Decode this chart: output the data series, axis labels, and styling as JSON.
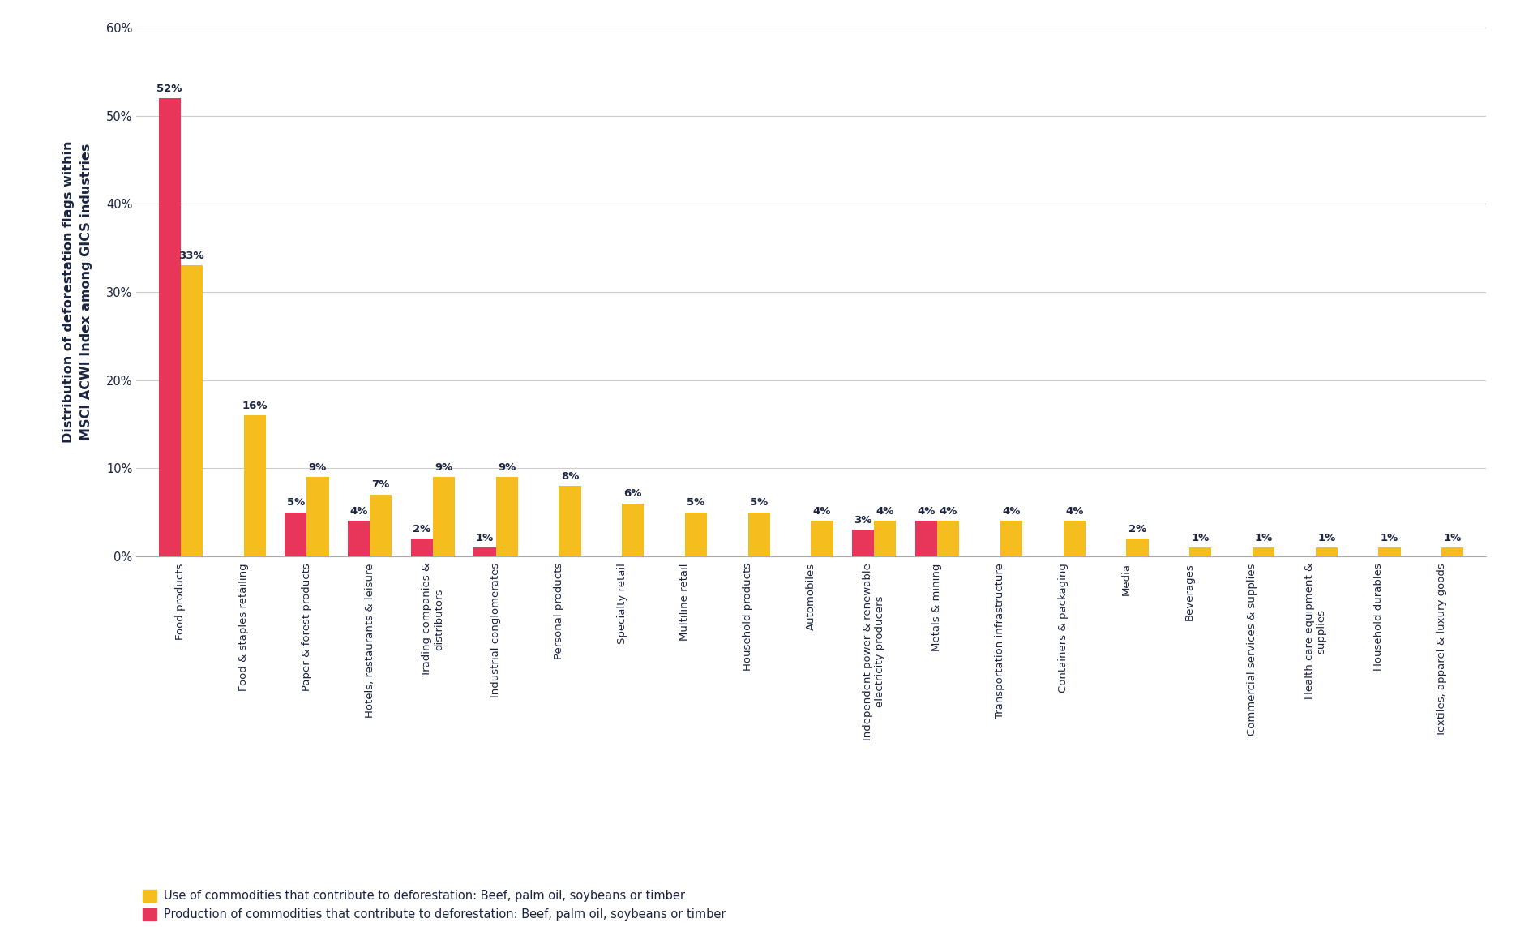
{
  "categories": [
    "Food products",
    "Food & staples retailing",
    "Paper & forest products",
    "Hotels, restaurants & leisure",
    "Trading companies &\ndistributors",
    "Industrial conglomerates",
    "Personal products",
    "Specialty retail",
    "Multiline retail",
    "Household products",
    "Automobiles",
    "Independent power & renewable\nelectricity producers",
    "Metals & mining",
    "Transportation infrastructure",
    "Containers & packaging",
    "Media",
    "Beverages",
    "Commercial services & supplies",
    "Health care equipment &\nsupplies",
    "Household durables",
    "Textiles, apparel & luxury goods"
  ],
  "use_values": [
    33,
    16,
    9,
    7,
    9,
    9,
    8,
    6,
    5,
    5,
    4,
    4,
    4,
    4,
    4,
    2,
    1,
    1,
    1,
    1,
    1
  ],
  "production_values": [
    52,
    0,
    5,
    4,
    2,
    1,
    0,
    0,
    0,
    0,
    0,
    3,
    4,
    0,
    0,
    0,
    0,
    0,
    0,
    0,
    0
  ],
  "use_color": "#F5BE1E",
  "production_color": "#E8365A",
  "background_color": "#FFFFFF",
  "ylabel": "Distribution of deforestation flags within\nMSCI ACWI Index among GICS industries",
  "ylim": [
    0,
    60
  ],
  "yticks": [
    0,
    10,
    20,
    30,
    40,
    50,
    60
  ],
  "grid_color": "#CCCCCC",
  "text_color": "#1A2340",
  "bar_width": 0.35,
  "legend_use": "Use of commodities that contribute to deforestation: Beef, palm oil, soybeans or timber",
  "legend_production": "Production of commodities that contribute to deforestation: Beef, palm oil, soybeans or timber",
  "label_fontsize": 9.5,
  "tick_fontsize": 10.5,
  "ylabel_fontsize": 11.5
}
